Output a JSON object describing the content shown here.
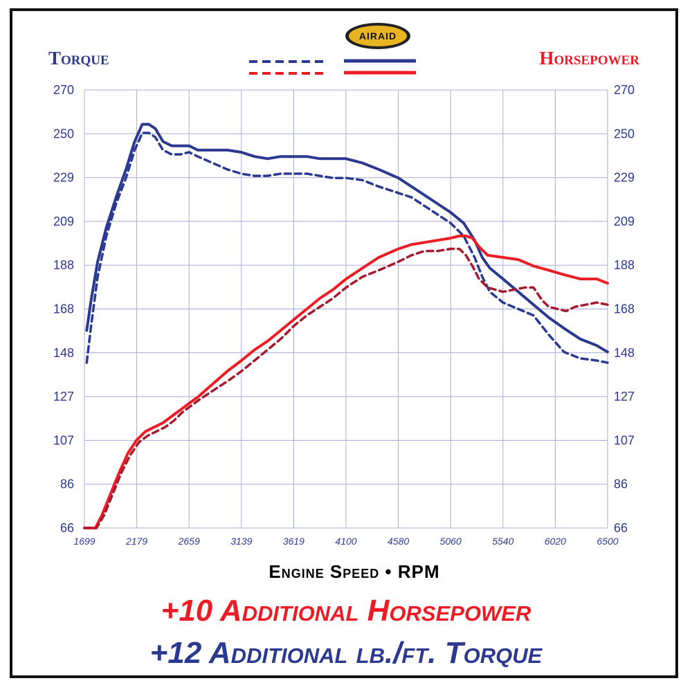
{
  "brand": {
    "logo_text": "AIRAID",
    "gold": "#e8b422",
    "dark": "#222222"
  },
  "colors": {
    "torque": "#2b3990",
    "hp": "#ed1c24",
    "hp_dashed": "#a6192e",
    "grid": "#a8a8d8"
  },
  "legend": {
    "left_label": "Torque",
    "right_label": "Horsepower"
  },
  "footer": {
    "hp_gain": "+10 Additional Horsepower",
    "torque_gain": "+12 Additional lb./ft. Torque"
  },
  "chart_data": {
    "type": "line",
    "xlabel": "Engine Speed • RPM",
    "ylabel_left": "Torque",
    "ylabel_right": "Horsepower",
    "x_ticks": [
      "1699",
      "2179",
      "2659",
      "3139",
      "3619",
      "4100",
      "4580",
      "5060",
      "5540",
      "6020",
      "6500"
    ],
    "y_ticks": [
      "270",
      "250",
      "229",
      "209",
      "188",
      "168",
      "148",
      "127",
      "107",
      "86",
      "66"
    ],
    "xlim": [
      1699,
      6500
    ],
    "ylim": [
      66,
      270
    ],
    "grid": true,
    "series": [
      {
        "name": "Torque (solid)",
        "style": "solid",
        "color": "#2b3990",
        "x": [
          1720,
          1760,
          1820,
          1900,
          1990,
          2080,
          2160,
          2230,
          2290,
          2350,
          2420,
          2500,
          2580,
          2660,
          2740,
          2830,
          2920,
          3010,
          3139,
          3260,
          3380,
          3500,
          3619,
          3740,
          3860,
          3980,
          4100,
          4250,
          4400,
          4580,
          4700,
          4820,
          4940,
          5060,
          5180,
          5280,
          5350,
          5420,
          5540,
          5680,
          5820,
          5960,
          6100,
          6250,
          6400,
          6500
        ],
        "y": [
          158,
          172,
          190,
          206,
          220,
          233,
          246,
          254,
          254,
          252,
          246,
          244,
          244,
          244,
          242,
          242,
          242,
          242,
          241,
          239,
          238,
          239,
          239,
          239,
          238,
          238,
          238,
          236,
          233,
          229,
          225,
          221,
          217,
          213,
          208,
          200,
          192,
          187,
          182,
          176,
          170,
          164,
          159,
          154,
          151,
          148
        ]
      },
      {
        "name": "Torque (dashed)",
        "style": "dashed",
        "color": "#2b3990",
        "x": [
          1720,
          1760,
          1820,
          1900,
          1990,
          2080,
          2160,
          2230,
          2290,
          2350,
          2420,
          2500,
          2580,
          2660,
          2740,
          2830,
          2920,
          3010,
          3139,
          3260,
          3380,
          3500,
          3619,
          3740,
          3860,
          3980,
          4100,
          4250,
          4400,
          4580,
          4700,
          4820,
          4940,
          5060,
          5180,
          5280,
          5350,
          5420,
          5540,
          5680,
          5820,
          5960,
          6100,
          6250,
          6400,
          6500
        ],
        "y": [
          143,
          160,
          183,
          202,
          217,
          229,
          242,
          250,
          250,
          248,
          242,
          240,
          240,
          241,
          239,
          237,
          235,
          233,
          231,
          230,
          230,
          231,
          231,
          231,
          230,
          229,
          229,
          228,
          225,
          222,
          220,
          216,
          212,
          208,
          202,
          192,
          183,
          176,
          171,
          168,
          165,
          156,
          148,
          145,
          144,
          143
        ]
      },
      {
        "name": "Horsepower (solid)",
        "style": "solid",
        "color": "#ed1c24",
        "x": [
          1699,
          1800,
          1860,
          1940,
          2020,
          2100,
          2179,
          2260,
          2340,
          2420,
          2500,
          2580,
          2659,
          2740,
          2830,
          2920,
          3010,
          3139,
          3260,
          3380,
          3500,
          3619,
          3740,
          3860,
          3980,
          4100,
          4250,
          4400,
          4580,
          4700,
          4820,
          4940,
          5060,
          5140,
          5200,
          5260,
          5320,
          5400,
          5540,
          5680,
          5820,
          5960,
          6100,
          6250,
          6400,
          6500
        ],
        "y": [
          66,
          66,
          72,
          82,
          92,
          101,
          107,
          111,
          113,
          115,
          118,
          121,
          124,
          127,
          131,
          135,
          139,
          144,
          149,
          153,
          158,
          163,
          168,
          173,
          177,
          182,
          187,
          192,
          196,
          198,
          199,
          200,
          201,
          202,
          202,
          201,
          197,
          193,
          192,
          191,
          188,
          186,
          184,
          182,
          182,
          180
        ]
      },
      {
        "name": "Horsepower (dashed)",
        "style": "dashed",
        "color": "#a6192e",
        "x": [
          1699,
          1810,
          1880,
          1960,
          2040,
          2120,
          2200,
          2280,
          2360,
          2440,
          2520,
          2600,
          2680,
          2760,
          2850,
          2940,
          3030,
          3139,
          3260,
          3380,
          3500,
          3619,
          3740,
          3860,
          3980,
          4100,
          4250,
          4400,
          4580,
          4700,
          4820,
          4940,
          5060,
          5140,
          5200,
          5260,
          5320,
          5400,
          5540,
          5640,
          5740,
          5820,
          5900,
          5960,
          6040,
          6120,
          6200,
          6300,
          6400,
          6500
        ],
        "y": [
          66,
          66,
          72,
          82,
          92,
          100,
          106,
          109,
          111,
          113,
          116,
          120,
          123,
          126,
          129,
          132,
          135,
          139,
          144,
          149,
          154,
          160,
          165,
          169,
          173,
          178,
          183,
          186,
          190,
          193,
          195,
          195,
          196,
          196,
          193,
          188,
          182,
          178,
          176,
          177,
          178,
          178,
          172,
          169,
          168,
          167,
          169,
          170,
          171,
          170
        ]
      }
    ]
  }
}
